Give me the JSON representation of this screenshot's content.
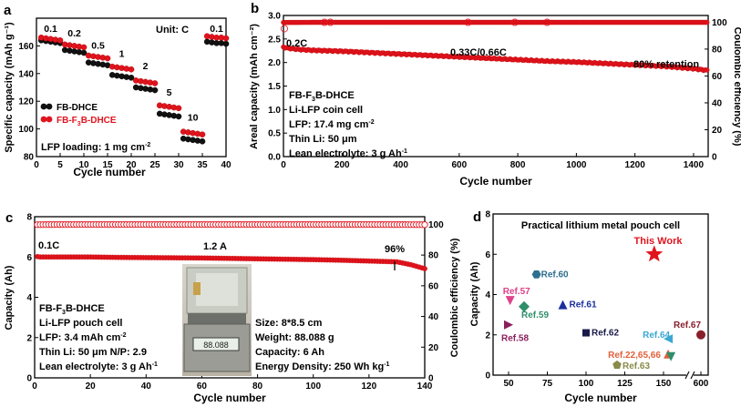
{
  "panels": {
    "a": {
      "label": "a",
      "unit_note": "Unit:  C",
      "rate_labels": [
        "0.1",
        "0.2",
        "0.5",
        "1",
        "2",
        "5",
        "10",
        "0.1"
      ],
      "legend": [
        "FB-DHCE",
        "FB-F",
        "3",
        "B-DHCE"
      ],
      "loading_note": "LFP loading:  1 mg cm",
      "loading_sup": "-2"
    },
    "b": {
      "label": "b",
      "rate_0": "0.2C",
      "rate_main": "0.33C/0.66C",
      "retention": "80% retention",
      "info": [
        "FB-F",
        "3",
        "B-DHCE",
        "Li-LFP coin cell",
        "LFP:  17.4 mg cm",
        "-2",
        "Thin Li:  50 μm",
        "Lean electrolyte:  3 g Ah",
        "-1"
      ]
    },
    "c": {
      "label": "c",
      "rate_0": "0.1C",
      "rate_main": "1.2 A",
      "retention": "96%",
      "info": [
        "FB-F",
        "3",
        "B-DHCE",
        "Li-LFP pouch cell",
        "LFP:  3.4 mAh cm",
        "-2",
        "Thin Li:  50 μm  N/P:  2.9",
        "Lean electrolyte:  3 g Ah",
        "-1"
      ],
      "specs": [
        "Size:  8*8.5 cm",
        "Weight:  88.088 g",
        "Capacity:  6 Ah",
        "Energy Density:  250 Wh kg",
        "-1"
      ],
      "scale_display": "88.088"
    },
    "d": {
      "label": "d",
      "title": "Practical lithium metal pouch cell",
      "this_work": "This Work"
    }
  },
  "chart_data": [
    {
      "panel": "a",
      "type": "scatter",
      "xlabel": "Cycle number",
      "ylabel": "Specific capacity (mAh g⁻¹)",
      "xlim": [
        0,
        40
      ],
      "ylim": [
        80,
        180
      ],
      "xticks": [
        "0",
        "5",
        "10",
        "15",
        "20",
        "25",
        "30",
        "35",
        "40"
      ],
      "yticks": [
        "80",
        "100",
        "120",
        "140",
        "160"
      ],
      "rates": [
        "0.1",
        "0.2",
        "0.5",
        "1",
        "2",
        "5",
        "10",
        "0.1"
      ],
      "series": [
        {
          "name": "FB-DHCE",
          "color": "#111111",
          "x": [
            1,
            2,
            3,
            4,
            5,
            6,
            7,
            8,
            9,
            10,
            11,
            12,
            13,
            14,
            15,
            16,
            17,
            18,
            19,
            20,
            21,
            22,
            23,
            24,
            25,
            26,
            27,
            28,
            29,
            30,
            31,
            32,
            33,
            34,
            35,
            36,
            37,
            38,
            39,
            40
          ],
          "y": [
            164,
            163.5,
            163,
            162.5,
            162,
            157,
            156.5,
            156,
            155.5,
            155,
            148,
            147.5,
            147,
            146.5,
            146,
            139,
            138.5,
            138,
            137.5,
            137,
            130,
            129.5,
            129,
            128.5,
            128,
            111,
            110.5,
            110,
            109.5,
            109,
            93,
            92.5,
            92,
            91.5,
            91,
            163,
            162.5,
            162,
            162,
            161.5
          ]
        },
        {
          "name": "FB-F3B-DHCE",
          "color": "#e0141e",
          "x": [
            1,
            2,
            3,
            4,
            5,
            6,
            7,
            8,
            9,
            10,
            11,
            12,
            13,
            14,
            15,
            16,
            17,
            18,
            19,
            20,
            21,
            22,
            23,
            24,
            25,
            26,
            27,
            28,
            29,
            30,
            31,
            32,
            33,
            34,
            35,
            36,
            37,
            38,
            39,
            40
          ],
          "y": [
            166,
            165.5,
            165,
            164.5,
            164,
            161,
            160.5,
            160,
            159.5,
            159,
            153,
            152.5,
            152,
            151.5,
            151,
            145,
            144.5,
            144,
            143.5,
            143,
            135,
            134.5,
            134,
            133.5,
            133,
            117,
            116.5,
            116,
            115.5,
            115,
            98,
            97.5,
            97,
            96.5,
            96,
            167,
            166.5,
            166,
            166,
            165.5
          ]
        }
      ]
    },
    {
      "panel": "b",
      "type": "scatter",
      "xlabel": "Cycle number",
      "ylabel": "Areal capacity (mAh cm⁻²)",
      "y2label": "Coulombic efficiency (%)",
      "xlim": [
        0,
        1450
      ],
      "ylim": [
        0,
        3.0
      ],
      "y2lim": [
        0,
        105
      ],
      "xticks": [
        "0",
        "200",
        "400",
        "600",
        "800",
        "1000",
        "1200",
        "1400"
      ],
      "yticks": [
        "0.0",
        "0.5",
        "1.0",
        "1.5",
        "2.0",
        "2.5",
        "3.0"
      ],
      "y2ticks": [
        "0",
        "20",
        "40",
        "60",
        "80",
        "100"
      ],
      "series": [
        {
          "name": "capacity",
          "color": "#e0141e",
          "x": [
            0,
            10,
            50,
            100,
            200,
            300,
            400,
            500,
            600,
            700,
            800,
            900,
            1000,
            1100,
            1200,
            1300,
            1400,
            1450
          ],
          "y": [
            2.33,
            2.31,
            2.28,
            2.26,
            2.24,
            2.21,
            2.18,
            2.15,
            2.12,
            2.09,
            2.06,
            2.03,
            2.01,
            1.98,
            1.95,
            1.92,
            1.87,
            1.83
          ]
        },
        {
          "name": "coulombic efficiency",
          "color": "#e0141e",
          "x": [
            0,
            100,
            200,
            400,
            600,
            800,
            1000,
            1200,
            1400,
            1450
          ],
          "y": [
            99.8,
            99.9,
            99.9,
            99.9,
            99.9,
            99.9,
            99.9,
            99.9,
            99.9,
            99.9
          ]
        }
      ]
    },
    {
      "panel": "c",
      "type": "scatter",
      "xlabel": "Cycle number",
      "ylabel": "Capacity (Ah)",
      "y2label": "Coulombic efficiency (%)",
      "xlim": [
        0,
        140
      ],
      "ylim": [
        0,
        8
      ],
      "y2lim": [
        0,
        105
      ],
      "xticks": [
        "0",
        "20",
        "40",
        "60",
        "80",
        "100",
        "120",
        "140"
      ],
      "yticks": [
        "0",
        "2",
        "4",
        "6",
        "8"
      ],
      "y2ticks": [
        "0",
        "20",
        "40",
        "60",
        "80",
        "100"
      ],
      "series": [
        {
          "name": "capacity",
          "color": "#e0141e",
          "x": [
            0,
            1,
            2,
            10,
            20,
            30,
            40,
            50,
            60,
            70,
            80,
            90,
            100,
            110,
            120,
            130,
            135,
            140
          ],
          "y": [
            6.05,
            6.02,
            6.0,
            6.0,
            6.0,
            5.98,
            5.97,
            5.96,
            5.95,
            5.93,
            5.91,
            5.89,
            5.87,
            5.84,
            5.8,
            5.76,
            5.62,
            5.42
          ]
        },
        {
          "name": "coulombic efficiency",
          "color": "#e0141e",
          "x": [
            0,
            10,
            20,
            40,
            60,
            80,
            100,
            120,
            140
          ],
          "y": [
            99.8,
            99.9,
            99.9,
            99.9,
            99.9,
            99.9,
            99.9,
            99.9,
            99.8
          ]
        }
      ]
    },
    {
      "panel": "d",
      "type": "scatter",
      "xlabel": "Cycle number",
      "ylabel": "Capacity (Ah)",
      "ylim": [
        0,
        8
      ],
      "xticks": [
        "50",
        "75",
        "100",
        "125",
        "150",
        "600"
      ],
      "yticks": [
        "0",
        "2",
        "4",
        "6",
        "8"
      ],
      "points": [
        {
          "label": "This Work",
          "x": 144,
          "y": 6.0,
          "color": "#e0141e",
          "marker": "star"
        },
        {
          "label": "Ref.60",
          "x": 68,
          "y": 5.0,
          "color": "#2f6f8f",
          "marker": "hexagon"
        },
        {
          "label": "Ref.57",
          "x": 51,
          "y": 3.7,
          "color": "#e0408a",
          "marker": "triangle-down"
        },
        {
          "label": "Ref.59",
          "x": 60,
          "y": 3.4,
          "color": "#2f8f6b",
          "marker": "diamond"
        },
        {
          "label": "Ref.61",
          "x": 85,
          "y": 3.5,
          "color": "#1a2f9e",
          "marker": "triangle-up"
        },
        {
          "label": "Ref.58",
          "x": 50,
          "y": 2.5,
          "color": "#8a1f5c",
          "marker": "triangle-right"
        },
        {
          "label": "Ref.62",
          "x": 100,
          "y": 2.1,
          "color": "#1a1a4a",
          "marker": "square"
        },
        {
          "label": "Ref.64",
          "x": 153,
          "y": 1.8,
          "color": "#3aa8d1",
          "marker": "triangle-left"
        },
        {
          "label": "Ref.67",
          "x": 600,
          "y": 2.0,
          "color": "#8a1f2c",
          "marker": "circle"
        },
        {
          "label": "Ref.22,65,66",
          "x": 153,
          "y": 1.05,
          "color": "#e0603a",
          "marker": "triangle-mix"
        },
        {
          "label": "Ref.63",
          "x": 120,
          "y": 0.5,
          "color": "#8a8a4a",
          "marker": "pentagon"
        }
      ]
    }
  ]
}
